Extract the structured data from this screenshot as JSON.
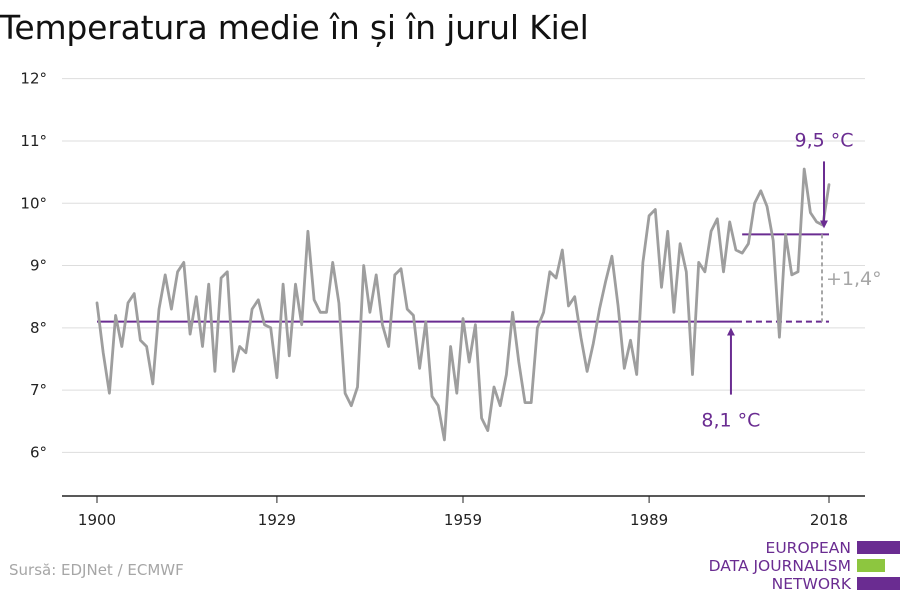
{
  "title": "Temperatura medie în și în jurul Kiel",
  "source": "Sursă: EDJNet / ECMWF",
  "logo": {
    "lines": [
      "EUROPEAN",
      "DATA JOURNALISM",
      "NETWORK"
    ]
  },
  "colors": {
    "line": "#9e9e9e",
    "accent": "#6a2c91",
    "green": "#8dc63f",
    "grid": "#dddddd",
    "axis": "#222222"
  },
  "chart_data": {
    "type": "line",
    "title": "Temperatura medie în și în jurul Kiel",
    "xlabel": "",
    "ylabel": "",
    "xlim": [
      1900,
      2018
    ],
    "ylim": [
      5.3,
      12.3
    ],
    "grid": true,
    "x_ticks": [
      1900,
      1929,
      1959,
      1989,
      2018
    ],
    "y_ticks": [
      6,
      7,
      8,
      9,
      10,
      11,
      12
    ],
    "y_tick_labels": [
      "6°",
      "7°",
      "8°",
      "9°",
      "10°",
      "11°",
      "12°"
    ],
    "series": [
      {
        "x": [
          1900,
          1901,
          1902,
          1903,
          1904,
          1905,
          1906,
          1907,
          1908,
          1909,
          1910,
          1911,
          1912,
          1913,
          1914,
          1915,
          1916,
          1917,
          1918,
          1919,
          1920,
          1921,
          1922,
          1923,
          1924,
          1925,
          1926,
          1927,
          1928,
          1929,
          1930,
          1931,
          1932,
          1933,
          1934,
          1935,
          1936,
          1937,
          1938,
          1939,
          1940,
          1941,
          1942,
          1943,
          1944,
          1945,
          1946,
          1947,
          1948,
          1949,
          1950,
          1951,
          1952,
          1953,
          1954,
          1955,
          1956,
          1957,
          1958,
          1959,
          1960,
          1961,
          1962,
          1963,
          1964,
          1965,
          1966,
          1967,
          1968,
          1969,
          1970,
          1971,
          1972,
          1973,
          1974,
          1975,
          1976,
          1977,
          1978,
          1979,
          1980,
          1981,
          1982,
          1983,
          1984,
          1985,
          1986,
          1987,
          1988,
          1989,
          1990,
          1991,
          1992,
          1993,
          1994,
          1995,
          1996,
          1997,
          1998,
          1999,
          2000,
          2001,
          2002,
          2003,
          2004,
          2005,
          2006,
          2007,
          2008,
          2009,
          2010,
          2011,
          2012,
          2013,
          2014,
          2015,
          2016,
          2017,
          2018
        ],
        "values": [
          8.4,
          7.6,
          6.95,
          8.2,
          7.7,
          8.4,
          8.55,
          7.8,
          7.7,
          7.1,
          8.3,
          8.85,
          8.3,
          8.9,
          9.05,
          7.9,
          8.5,
          7.7,
          8.7,
          7.3,
          8.8,
          8.9,
          7.3,
          7.7,
          7.6,
          8.3,
          8.45,
          8.05,
          8.0,
          7.2,
          8.7,
          7.55,
          8.7,
          8.05,
          9.55,
          8.45,
          8.25,
          8.25,
          9.05,
          8.4,
          6.95,
          6.75,
          7.05,
          9.0,
          8.25,
          8.85,
          8.05,
          7.7,
          8.85,
          8.95,
          8.3,
          8.2,
          7.35,
          8.1,
          6.9,
          6.75,
          6.2,
          7.7,
          6.95,
          8.15,
          7.45,
          8.05,
          6.55,
          6.35,
          7.05,
          6.75,
          7.25,
          8.25,
          7.45,
          6.8,
          6.8,
          8.0,
          8.25,
          8.9,
          8.8,
          9.25,
          8.35,
          8.5,
          7.85,
          7.3,
          7.75,
          8.3,
          8.75,
          9.15,
          8.35,
          7.35,
          7.8,
          7.25,
          9.05,
          9.8,
          9.9,
          8.65,
          9.55,
          8.25,
          9.35,
          8.9,
          7.25,
          9.05,
          8.9,
          9.55,
          9.75,
          8.9,
          9.7,
          9.25,
          9.2,
          9.35,
          10.0,
          10.2,
          9.95,
          9.4,
          7.85,
          9.5,
          8.85,
          8.9,
          10.55,
          9.85,
          9.7,
          9.65,
          10.3
        ]
      }
    ],
    "annotations": [
      {
        "label": "8,1 °C",
        "value": 8.1,
        "x_from": 1900,
        "x_to": 2003,
        "dashed_to": 2018
      },
      {
        "label": "9,5 °C",
        "value": 9.5,
        "x_from": 2004,
        "x_to": 2018
      },
      {
        "label": "+1,4°",
        "from": 8.1,
        "to": 9.5,
        "at_x": 2018
      }
    ]
  }
}
